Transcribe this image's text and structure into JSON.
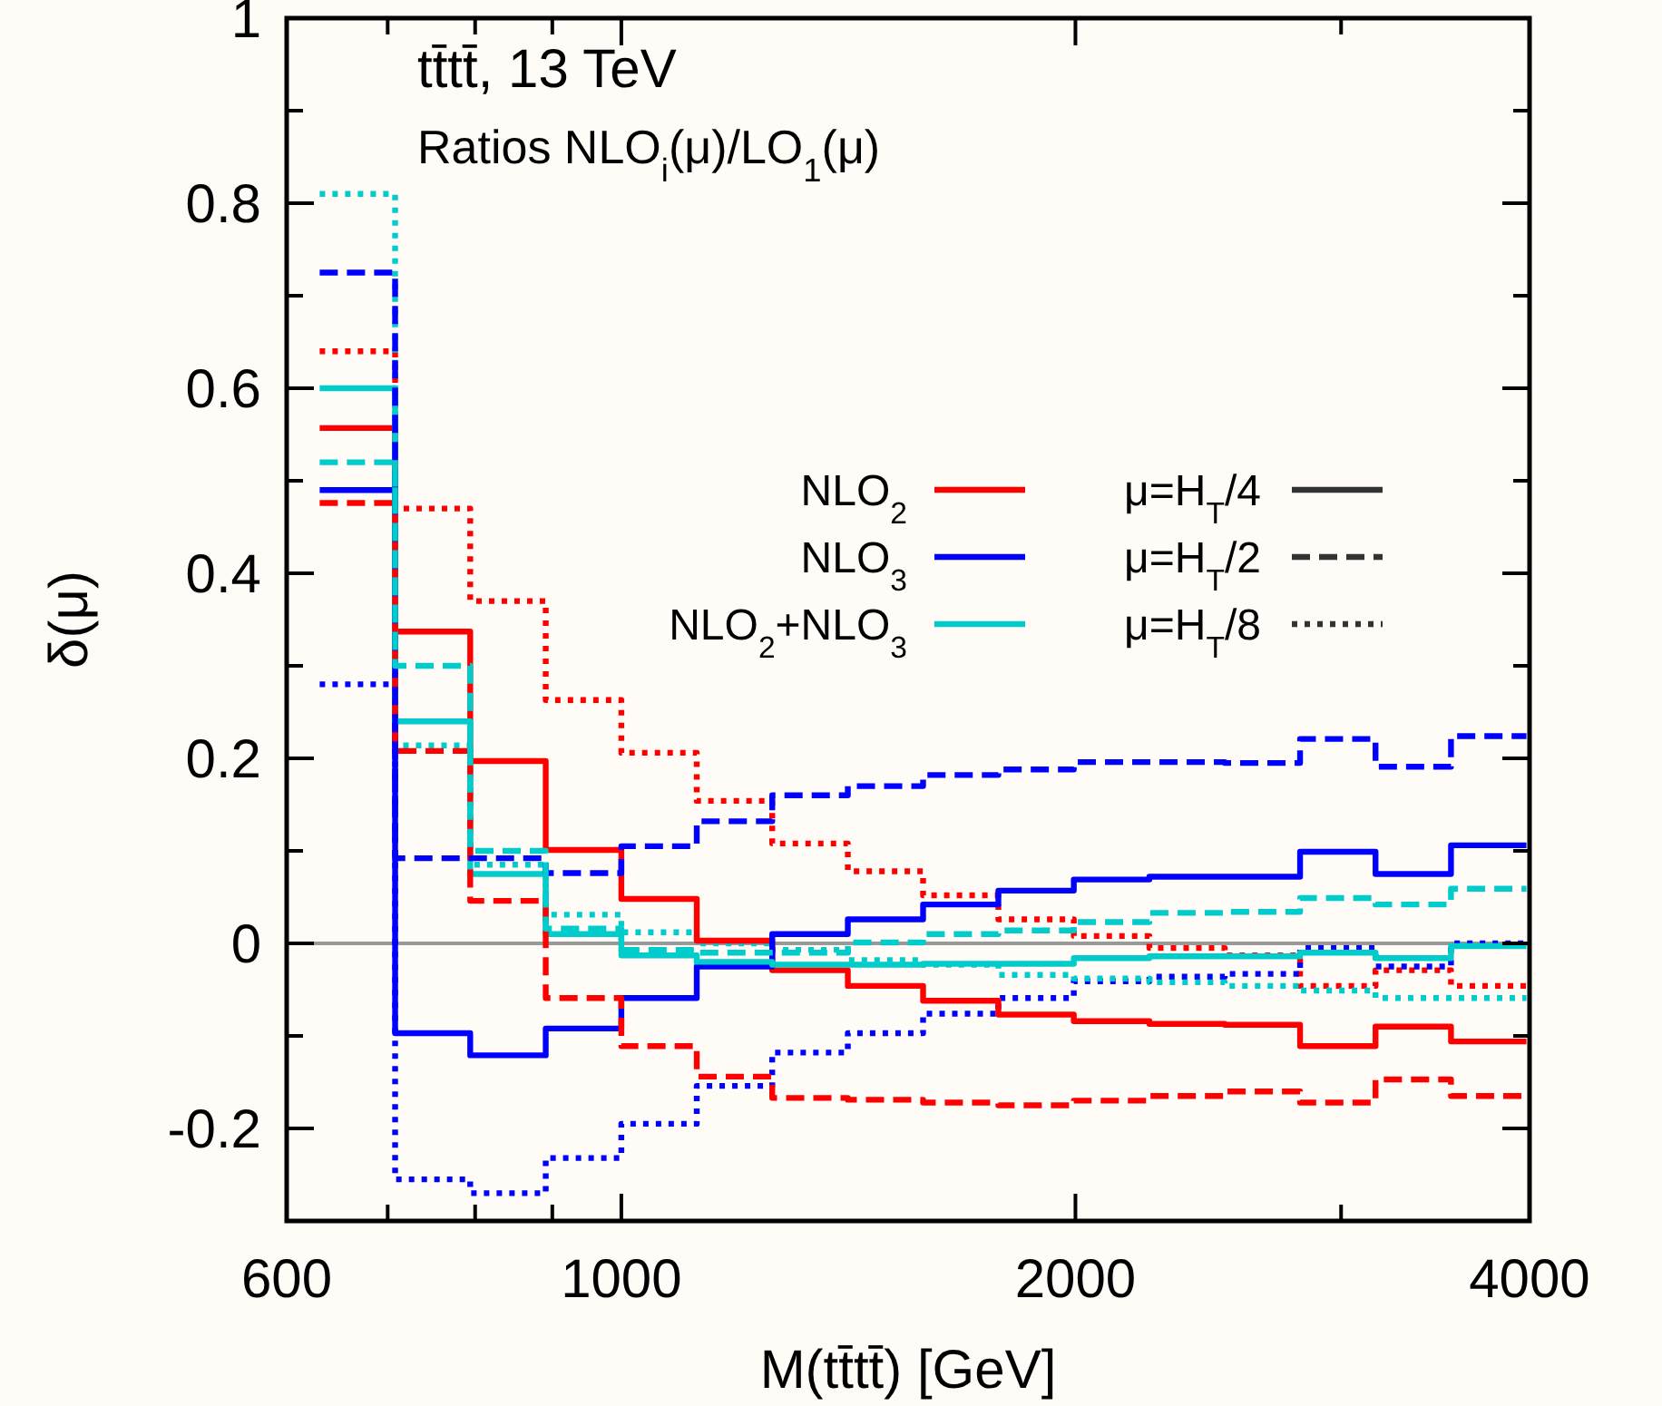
{
  "chart_data": {
    "type": "step",
    "title": "tt̄tt̄, 13 TeV",
    "subtitle": "Ratios NLO$_{i}$(μ)/LO$_{1}$(μ)",
    "xlabel": "M(tt̄tt̄) [GeV]",
    "ylabel": "δ(μ)",
    "x": [
      631,
      708,
      794,
      891,
      1000,
      1122,
      1259,
      1413,
      1585,
      1778,
      1995,
      2239,
      2512,
      2818,
      3162,
      3548,
      3981
    ],
    "series": [
      {
        "name": "NLO$_{2}$",
        "color": "#ff0000",
        "line_style": "solid",
        "values": [
          0.557,
          0.337,
          0.197,
          0.101,
          0.048,
          0.003,
          -0.029,
          -0.046,
          -0.062,
          -0.077,
          -0.084,
          -0.087,
          -0.088,
          -0.111,
          -0.09,
          -0.106,
          -0.106
        ]
      },
      {
        "name": "NLO$_{3}$",
        "color": "#0000ff",
        "line_style": "solid",
        "values": [
          0.49,
          -0.097,
          -0.121,
          -0.092,
          -0.059,
          -0.025,
          0.01,
          0.026,
          0.042,
          0.057,
          0.069,
          0.072,
          0.072,
          0.099,
          0.075,
          0.106,
          0.106
        ]
      },
      {
        "name": "NLO$_{2}$+NLO$_{3}$",
        "color": "#00cccc",
        "line_style": "solid",
        "values": [
          0.6,
          0.24,
          0.075,
          0.01,
          -0.013,
          -0.02,
          -0.023,
          -0.023,
          -0.022,
          -0.022,
          -0.016,
          -0.014,
          -0.014,
          -0.01,
          -0.016,
          -0.003,
          -0.003
        ]
      },
      {
        "color": "#ff0000",
        "line_style": "dashed",
        "values": [
          0.476,
          0.208,
          0.046,
          -0.059,
          -0.111,
          -0.144,
          -0.167,
          -0.169,
          -0.172,
          -0.175,
          -0.17,
          -0.165,
          -0.16,
          -0.172,
          -0.147,
          -0.165,
          -0.165
        ]
      },
      {
        "color": "#0000ff",
        "line_style": "dashed",
        "values": [
          0.725,
          0.092,
          0.092,
          0.076,
          0.105,
          0.132,
          0.16,
          0.17,
          0.182,
          0.188,
          0.196,
          0.196,
          0.195,
          0.221,
          0.191,
          0.224,
          0.224
        ]
      },
      {
        "color": "#00cccc",
        "line_style": "dashed",
        "values": [
          0.52,
          0.3,
          0.1,
          0.016,
          -0.007,
          -0.01,
          -0.01,
          0.001,
          0.01,
          0.014,
          0.023,
          0.033,
          0.034,
          0.049,
          0.042,
          0.059,
          0.059
        ]
      },
      {
        "color": "#ff0000",
        "line_style": "dotted",
        "values": [
          0.64,
          0.47,
          0.37,
          0.263,
          0.206,
          0.154,
          0.108,
          0.078,
          0.052,
          0.026,
          0.008,
          -0.005,
          -0.013,
          -0.046,
          -0.029,
          -0.046,
          -0.046
        ]
      },
      {
        "color": "#0000ff",
        "line_style": "dotted",
        "values": [
          0.28,
          -0.255,
          -0.27,
          -0.232,
          -0.195,
          -0.154,
          -0.118,
          -0.097,
          -0.076,
          -0.059,
          -0.041,
          -0.036,
          -0.033,
          -0.005,
          -0.025,
          0,
          0
        ]
      },
      {
        "color": "#00cccc",
        "line_style": "dotted",
        "values": [
          0.81,
          0.214,
          0.085,
          0.031,
          0.012,
          0,
          -0.007,
          -0.018,
          -0.023,
          -0.034,
          -0.038,
          -0.042,
          -0.046,
          -0.051,
          -0.059,
          -0.059,
          -0.059
        ]
      }
    ],
    "annotations": [
      "μ=H$_{T}$/4",
      "μ=H$_{T}$/2",
      "μ=H$_{T}$/8"
    ],
    "log": "x",
    "xlim": [
      600,
      4000
    ],
    "xticks": [
      600,
      {
        "value": 700,
        "label": null
      },
      {
        "value": 800,
        "label": null
      },
      {
        "value": 900,
        "label": null
      },
      1000,
      2000,
      {
        "value": 3000,
        "label": null
      },
      4000
    ],
    "ylim": [
      -0.3,
      1
    ],
    "yticks": [
      {
        "value": -0.3,
        "label": null
      },
      -0.2,
      {
        "value": -0.1,
        "label": null
      },
      0,
      {
        "value": 0.1,
        "label": null
      },
      0.2,
      {
        "value": 0.3,
        "label": null
      },
      0.4,
      {
        "value": 0.5,
        "label": null
      },
      0.6,
      {
        "value": 0.7,
        "label": null
      },
      0.8,
      {
        "value": 0.9,
        "label": null
      },
      1
    ],
    "ref_lines": [
      {
        "axis": "y",
        "value": 0,
        "color": "#999999"
      }
    ],
    "legend": "top right",
    "grid": false
  }
}
